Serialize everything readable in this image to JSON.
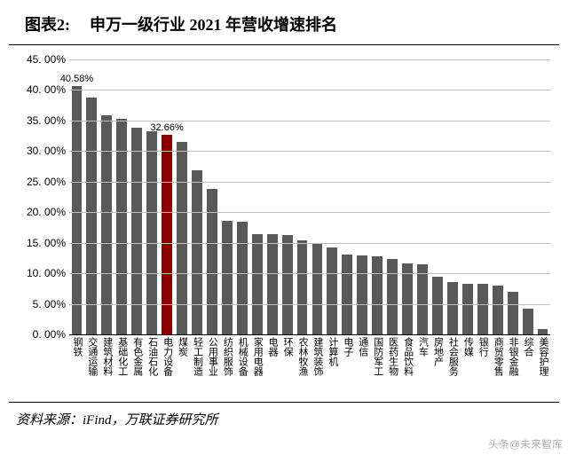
{
  "header": {
    "prefix": "图表2:",
    "title": "申万一级行业 2021 年营收增速排名"
  },
  "chart": {
    "type": "bar",
    "ylim": [
      0,
      45
    ],
    "ytick_step": 5,
    "ytick_format_suffix": ".00%",
    "grid_color": "#bfbfbf",
    "baseline_color": "#000000",
    "background_color": "#ffffff",
    "bar_color_default": "#595959",
    "bar_color_highlight": "#8b0000",
    "annotations": [
      {
        "index": 0,
        "text": "40.58%"
      },
      {
        "index": 6,
        "text": "32.66%"
      }
    ],
    "categories": [
      "钢铁",
      "交通运输",
      "建筑材料",
      "基础化工",
      "有色金属",
      "石油石化",
      "电力设备",
      "煤炭",
      "轻工制造",
      "公用事业",
      "纺织服饰",
      "机械设备",
      "家用电器",
      "电器",
      "环保",
      "农林牧渔",
      "建筑装饰",
      "计算机",
      "电子",
      "通信",
      "国防军工",
      "医药生物",
      "食品饮料",
      "汽车",
      "房地产",
      "社会服务",
      "传媒",
      "银行",
      "商贸零售",
      "非银金融",
      "综合",
      "美容护理"
    ],
    "values": [
      40.58,
      38.8,
      35.8,
      35.3,
      33.8,
      33.3,
      32.66,
      31.5,
      26.8,
      23.8,
      18.6,
      18.4,
      16.4,
      16.4,
      16.3,
      15.4,
      15.0,
      14.2,
      13.1,
      12.9,
      12.8,
      12.4,
      11.6,
      11.5,
      9.4,
      8.6,
      8.3,
      8.3,
      8.0,
      7.0,
      4.2,
      0.9
    ],
    "highlight_indices": [
      6
    ]
  },
  "footer": {
    "source": "资料来源：iFind，万联证券研究所"
  },
  "watermark": "头条@未来智库"
}
